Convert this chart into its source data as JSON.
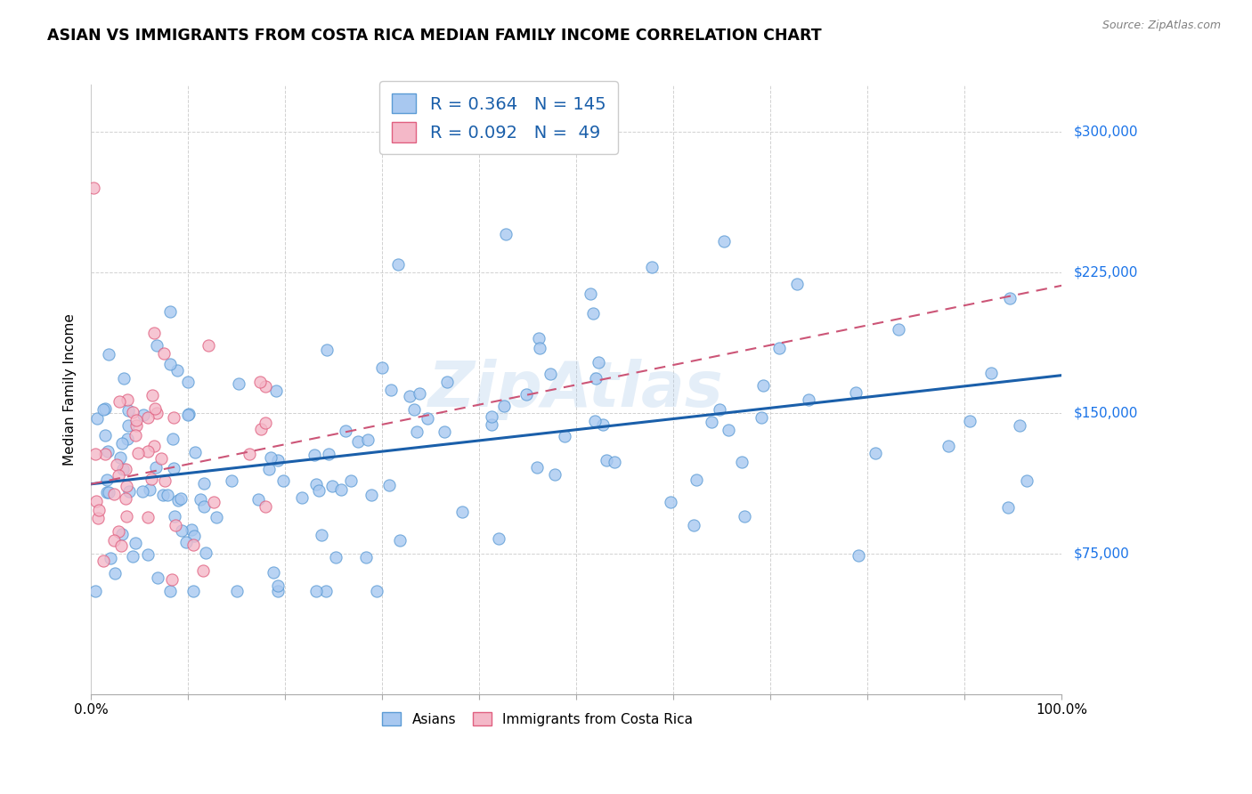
{
  "title": "ASIAN VS IMMIGRANTS FROM COSTA RICA MEDIAN FAMILY INCOME CORRELATION CHART",
  "source": "Source: ZipAtlas.com",
  "ylabel": "Median Family Income",
  "xlim": [
    0,
    1
  ],
  "ylim": [
    0,
    325000
  ],
  "yticks": [
    75000,
    150000,
    225000,
    300000
  ],
  "ytick_labels": [
    "$75,000",
    "$150,000",
    "$225,000",
    "$300,000"
  ],
  "asian_color": "#a8c8f0",
  "asian_edge_color": "#5b9bd5",
  "costa_rica_color": "#f4b8c8",
  "costa_rica_edge_color": "#e06080",
  "trend_asian_color": "#1a5faa",
  "trend_costa_rica_color": "#cc5577",
  "R_asian": 0.364,
  "N_asian": 145,
  "R_costa_rica": 0.092,
  "N_costa_rica": 49,
  "watermark": "ZipAtlas",
  "background_color": "#ffffff",
  "legend_label_asian": "R = 0.364   N = 145",
  "legend_label_cr": "R = 0.092   N =  49",
  "bottom_label_asian": "Asians",
  "bottom_label_cr": "Immigrants from Costa Rica",
  "asian_trend_x0": 0.0,
  "asian_trend_y0": 112000,
  "asian_trend_x1": 1.0,
  "asian_trend_y1": 170000,
  "cr_trend_x0": 0.0,
  "cr_trend_y0": 112000,
  "cr_trend_x1": 0.17,
  "cr_trend_y1": 130000
}
